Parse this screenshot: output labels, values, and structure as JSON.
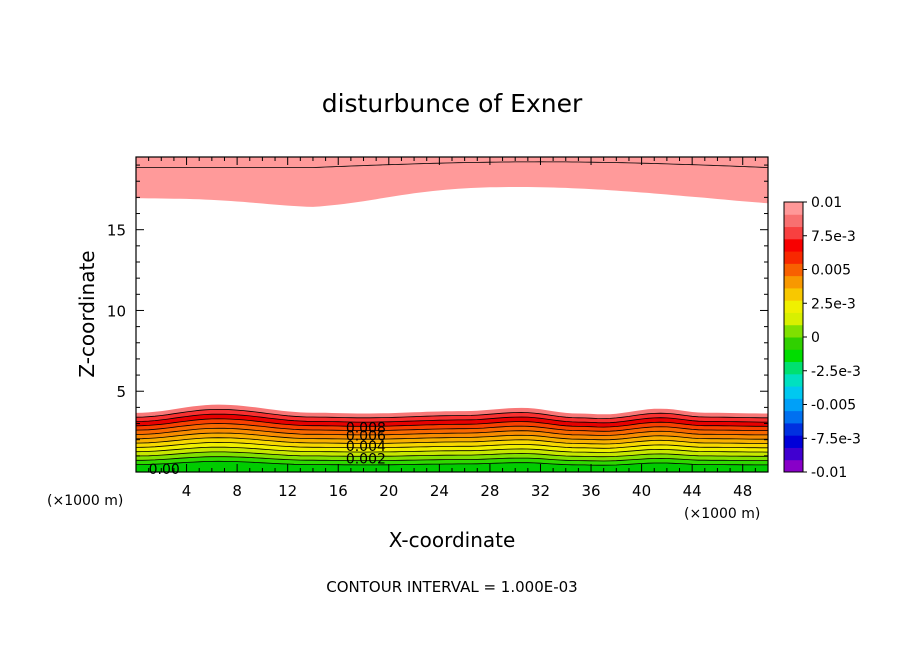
{
  "chart_data": {
    "type": "contour",
    "title": "disturbunce of Exner",
    "xlabel": "X-coordinate",
    "ylabel": "Z-coordinate",
    "x_unit_left": "(×1000 m)",
    "x_unit_right": "(×1000 m)",
    "xlim": [
      0,
      50
    ],
    "ylim": [
      0,
      19.5
    ],
    "x_ticks": [
      4,
      8,
      12,
      16,
      20,
      24,
      28,
      32,
      36,
      40,
      44,
      48
    ],
    "y_ticks": [
      5,
      10,
      15
    ],
    "footer": "CONTOUR INTERVAL = 1.000E-03",
    "contour_labels": [
      "0.008",
      "0.006",
      "0.004",
      "0.002",
      "0.00"
    ],
    "colorbar": {
      "labels": [
        "0.01",
        "7.5e-3",
        "0.005",
        "2.5e-3",
        "0",
        "-2.5e-3",
        "-0.005",
        "-7.5e-3",
        "-0.01"
      ],
      "colors": [
        "#8800c8",
        "#4000d0",
        "#0000d8",
        "#0030e0",
        "#0070f0",
        "#00a0f8",
        "#00c8f0",
        "#00e0c0",
        "#00e070",
        "#00dd00",
        "#30d000",
        "#80e000",
        "#d8f000",
        "#f0f000",
        "#f8c800",
        "#f89800",
        "#f86000",
        "#f82800",
        "#f80000",
        "#f84040",
        "#f87070",
        "#ff9898"
      ]
    },
    "bottom_bands": {
      "colors": [
        "#f87878",
        "#f83030",
        "#e80000",
        "#f84000",
        "#f86800",
        "#f88c00",
        "#f8b000",
        "#f8d800",
        "#f0f000",
        "#c8e800",
        "#80e000",
        "#30d800",
        "#00cc00"
      ]
    },
    "top_bands": {
      "colors": [
        "#f85858",
        "#f87878",
        "#ff9a9a"
      ]
    }
  }
}
